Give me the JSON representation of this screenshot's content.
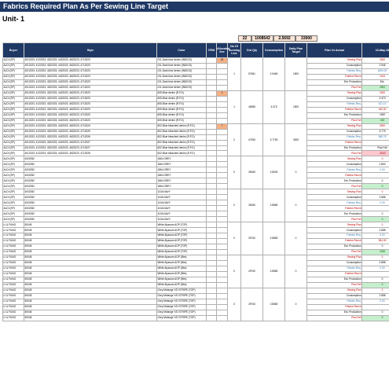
{
  "title": "Fabrics Required Plan As Per Sewing Line Target",
  "unit": "Unit- 1",
  "summary": {
    "lines": "22",
    "qty": "1008542",
    "consumption": "2.5692",
    "daily": "33000"
  },
  "headers": [
    "Buyer",
    "Style",
    "Color",
    "ITEM",
    "Allocated line",
    "No Of Running Line",
    "Ord Qty",
    "Consumption",
    "Daily Plan Target",
    "Plan Vs Actual",
    "16-May-18"
  ],
  "plan_labels": [
    "Sewing Plan",
    "Consumption",
    "Fabrics Req.",
    "Fabrics Recvd",
    "Est. Production",
    "Plan Fall"
  ],
  "groups": [
    {
      "rows": [
        {
          "buyer": "ALDI (SP)",
          "style": "4012023, 4122023, 4322023, 4422023, 4622023, 4712023",
          "color": "G/1-Dark blue denim (INDIGO)",
          "alloc": "22"
        },
        {
          "buyer": "ALDI (SP)",
          "style": "4012023, 4122023, 4322023, 4422023, 4622023, 4712023",
          "color": "G/1-Dark blue denim (INDIGO)",
          "alloc": ""
        },
        {
          "buyer": "ALDI (SP)",
          "style": "4012023, 4122023, 4322023, 4422023, 4622023, 4712023",
          "color": "G/1-Dark blue denim (INDIGO)",
          "alloc": ""
        },
        {
          "buyer": "ALDI (SP)",
          "style": "4012023, 4122023, 4322023, 4422023, 4622023, 4712023",
          "color": "G/1-Dark blue denim (INDIGO)",
          "alloc": ""
        },
        {
          "buyer": "ALDI (SP)",
          "style": "4012023, 4122023, 4322023, 4422023, 4622023, 4712023",
          "color": "G/1-Dark blue denim (INDIGO)",
          "alloc": ""
        },
        {
          "buyer": "ALDI (SP)",
          "style": "4012023, 4122023, 4322023, 4422023, 4622023, 4712023",
          "color": "G/1-Dark blue denim (INDIGO)",
          "alloc": ""
        }
      ],
      "running": "1",
      "ord": "57481",
      "cons": "2.9460",
      "daily": "1500",
      "values": [
        "1500",
        "2.946",
        "4404.20",
        "1403",
        "Est.",
        "2902"
      ]
    },
    {
      "rows": [
        {
          "buyer": "ALDI (SP)",
          "style": "4012023, 4122023, 4322023, 4422023, 4622023, 4712023",
          "color": "605-Blue denim (R.F.D)",
          "alloc": "1"
        },
        {
          "buyer": "ALDI (SP)",
          "style": "4012023, 4122023, 4322023, 4422023, 4622023, 4712023",
          "color": "605-Blue denim (R.F.D)",
          "alloc": ""
        },
        {
          "buyer": "ALDI (SP)",
          "style": "4012023, 4122023, 4322023, 4422023, 4622023, 4712023",
          "color": "605-Blue denim (R.F.D)",
          "alloc": ""
        },
        {
          "buyer": "ALDI (SP)",
          "style": "4012023, 4122023, 4322023, 4422023, 4622023, 4712023",
          "color": "605-Blue denim (R.F.D)",
          "alloc": ""
        },
        {
          "buyer": "ALDI (SP)",
          "style": "4012023, 4122023, 4322023, 4422023, 4622023, 4712023",
          "color": "605-Blue denim (R.F.D)",
          "alloc": ""
        },
        {
          "buyer": "ALDI (SP)",
          "style": "4012023, 4122023, 4322023, 4422023, 4622023, 4712023",
          "color": "605-Blue denim (R.F.D)",
          "alloc": ""
        }
      ],
      "running": "1",
      "ord": "46355",
      "cons": "3.373",
      "daily": "1500",
      "values": [
        "1500",
        "3.373",
        "421.10",
        "160.00",
        "1992",
        "492"
      ]
    },
    {
      "rows": [
        {
          "buyer": "ALDI (SP)",
          "style": "4012023, 4122023, 4322023, 4422023, 4622023, 4712024",
          "color": "602-Blue bleached denim (R.F.D)",
          "alloc": "7"
        },
        {
          "buyer": "ALDI (SP)",
          "style": "4012023, 4122023, 4322023, 4422023, 4622023, 4712025",
          "color": "602-Blue bleached denim (R.F.D)",
          "alloc": ""
        },
        {
          "buyer": "ALDI (SP)",
          "style": "4012023, 4122023, 4322023, 4422023, 4622023, 4712026",
          "color": "602-Blue bleached denim (R.F.D)",
          "alloc": ""
        },
        {
          "buyer": "ALDI (SP)",
          "style": "4012023, 4122023, 4322023, 4422023, 4622023, 4712027",
          "color": "602-Blue bleached denim (R.F.D)",
          "alloc": ""
        },
        {
          "buyer": "ALDI (SP)",
          "style": "4012023, 4122023, 4322023, 4422023, 4622023, 4712027",
          "color": "602-Blue bleached denim (R.F.D)",
          "alloc": ""
        },
        {
          "buyer": "ALDI (SP)",
          "style": "4012023, 4122023, 4322023, 4422023, 4622023, 4712028",
          "color": "602-Blue bleached denim (R.F.D)",
          "alloc": ""
        }
      ],
      "running": "2",
      "ord": "47933",
      "cons": "3.7750",
      "daily": "3000",
      "values": [
        "3000",
        "3.775",
        "965.75",
        "",
        "Plan Fall",
        "-3000"
      ]
    },
    {
      "rows": [
        {
          "buyer": "ALDI (SP)",
          "style": "4002052",
          "color": "1864 GREY",
          "alloc": ""
        },
        {
          "buyer": "ALDI (SP)",
          "style": "4002052",
          "color": "1864 GREY",
          "alloc": ""
        },
        {
          "buyer": "ALDI (SP)",
          "style": "4002052",
          "color": "1864 GREY",
          "alloc": ""
        },
        {
          "buyer": "ALDI (SP)",
          "style": "4002052",
          "color": "1864 GREY",
          "alloc": ""
        },
        {
          "buyer": "ALDI (SP)",
          "style": "4002052",
          "color": "1864 GREY",
          "alloc": ""
        },
        {
          "buyer": "ALDI (SP)",
          "style": "4002052",
          "color": "1864 GREY",
          "alloc": ""
        }
      ],
      "running": "0",
      "ord": "25040",
      "cons": "2.8000",
      "daily": "0",
      "values": [
        "0",
        "2.800",
        "0.00",
        "",
        "0",
        "0"
      ]
    },
    {
      "rows": [
        {
          "buyer": "ALDI (SP)",
          "style": "4002052",
          "color": "110A NAVY",
          "alloc": ""
        },
        {
          "buyer": "ALDI (SP)",
          "style": "4002052",
          "color": "110A NAVY",
          "alloc": ""
        },
        {
          "buyer": "ALDI (SP)",
          "style": "4002052",
          "color": "110A NAVY",
          "alloc": ""
        },
        {
          "buyer": "ALDI (SP)",
          "style": "4002052",
          "color": "110A NAVY",
          "alloc": ""
        },
        {
          "buyer": "ALDI (SP)",
          "style": "4002052",
          "color": "110A NAVY",
          "alloc": ""
        },
        {
          "buyer": "ALDI (SP)",
          "style": "4002052",
          "color": "110A NAVY",
          "alloc": ""
        }
      ],
      "running": "0",
      "ord": "25040",
      "cons": "2.8580",
      "daily": "0",
      "values": [
        "0",
        "2.858",
        "0.00",
        "",
        "0",
        "0"
      ]
    },
    {
      "rows": [
        {
          "buyer": "LI & FUNG",
          "style": "50045",
          "color": "White Alyssum AOP (TOP)",
          "alloc": ""
        },
        {
          "buyer": "LI & FUNG",
          "style": "50045",
          "color": "White Alyssum AOP (TOP)",
          "alloc": ""
        },
        {
          "buyer": "LI & FUNG",
          "style": "50045",
          "color": "White Alyssum AOP (TOP)",
          "alloc": ""
        },
        {
          "buyer": "LI & FUNG",
          "style": "50045",
          "color": "White Alyssum AOP (TOP)",
          "alloc": ""
        },
        {
          "buyer": "LI & FUNG",
          "style": "50045",
          "color": "White Alyssum AOP (TOP)",
          "alloc": ""
        },
        {
          "buyer": "LI & FUNG",
          "style": "50045",
          "color": "White Alyssum AOP (TOP)",
          "alloc": ""
        }
      ],
      "running": "0",
      "ord": "29740",
      "cons": "2.8580",
      "daily": "0",
      "values": [
        "0",
        "2.858",
        "0.00",
        "554.00",
        "0",
        "2326"
      ]
    },
    {
      "rows": [
        {
          "buyer": "LI & FUNG",
          "style": "50045",
          "color": "White Alyssum AOP (Btm)",
          "alloc": ""
        },
        {
          "buyer": "LI & FUNG",
          "style": "50045",
          "color": "White Alyssum AOP (Btm)",
          "alloc": ""
        },
        {
          "buyer": "LI & FUNG",
          "style": "50045",
          "color": "White Alyssum AOP (Btm)",
          "alloc": ""
        },
        {
          "buyer": "LI & FUNG",
          "style": "50045",
          "color": "White Alyssum AOP (Btm)",
          "alloc": ""
        },
        {
          "buyer": "LI & FUNG",
          "style": "50045",
          "color": "White Alyssum AOP (Btm)",
          "alloc": ""
        },
        {
          "buyer": "LI & FUNG",
          "style": "50045",
          "color": "White Alyssum AOP (Btm)",
          "alloc": ""
        }
      ],
      "running": "0",
      "ord": "29740",
      "cons": "2.8580",
      "daily": "0",
      "values": [
        "0",
        "2.858",
        "0.00",
        "",
        "0",
        "0"
      ]
    },
    {
      "rows": [
        {
          "buyer": "LI & FUNG",
          "style": "50045",
          "color": "Grey Melange Y/D STRIPE (TOP)",
          "alloc": ""
        },
        {
          "buyer": "LI & FUNG",
          "style": "50045",
          "color": "Grey Melange Y/D STRIPE (TOP)",
          "alloc": ""
        },
        {
          "buyer": "LI & FUNG",
          "style": "50045",
          "color": "Grey Melange Y/D STRIPE (TOP)",
          "alloc": ""
        },
        {
          "buyer": "LI & FUNG",
          "style": "50045",
          "color": "Grey Melange Y/D STRIPE (TOP)",
          "alloc": ""
        },
        {
          "buyer": "LI & FUNG",
          "style": "50045",
          "color": "Grey Melange Y/D STRIPE (TOP)",
          "alloc": ""
        },
        {
          "buyer": "LI & FUNG",
          "style": "50045",
          "color": "Grey Melange Y/D STRIPE (TOP)",
          "alloc": ""
        }
      ],
      "running": "0",
      "ord": "29740",
      "cons": "2.8580",
      "daily": "0",
      "values": [
        "0",
        "2.858",
        "0.00",
        "",
        "0",
        "0"
      ]
    }
  ]
}
